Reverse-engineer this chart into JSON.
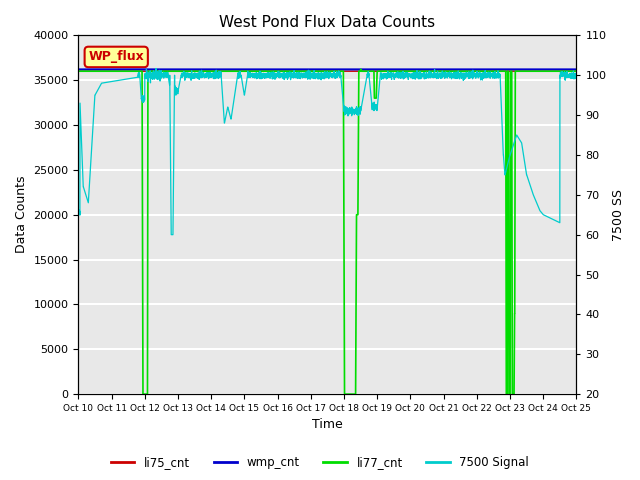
{
  "title": "West Pond Flux Data Counts",
  "xlabel": "Time",
  "ylabel_left": "Data Counts",
  "ylabel_right": "7500 SS",
  "ylim_left": [
    0,
    40000
  ],
  "ylim_right": [
    20,
    110
  ],
  "yticks_left": [
    0,
    5000,
    10000,
    15000,
    20000,
    25000,
    30000,
    35000,
    40000
  ],
  "yticks_right": [
    20,
    30,
    40,
    50,
    60,
    70,
    80,
    90,
    100,
    110
  ],
  "xtick_labels": [
    "Oct 10",
    "Oct 11",
    "Oct 12",
    "Oct 13",
    "Oct 14",
    "Oct 15",
    "Oct 16",
    "Oct 17",
    "Oct 18",
    "Oct 19",
    "Oct 20",
    "Oct 21",
    "Oct 22",
    "Oct 23",
    "Oct 24",
    "Oct 25"
  ],
  "colors": {
    "li75_cnt": "#cc0000",
    "wmp_cnt": "#0000cc",
    "li77_cnt": "#00dd00",
    "signal_7500": "#00cccc",
    "background": "#e8e8e8",
    "plot_bg": "#dcdcdc"
  },
  "annotation_box": {
    "text": "WP_flux",
    "facecolor": "#ffff99",
    "edgecolor": "#cc0000",
    "fontsize": 9
  },
  "legend_labels": [
    "li75_cnt",
    "wmp_cnt",
    "li77_cnt",
    "7500 Signal"
  ],
  "legend_colors": [
    "#cc0000",
    "#0000cc",
    "#00dd00",
    "#00cccc"
  ]
}
